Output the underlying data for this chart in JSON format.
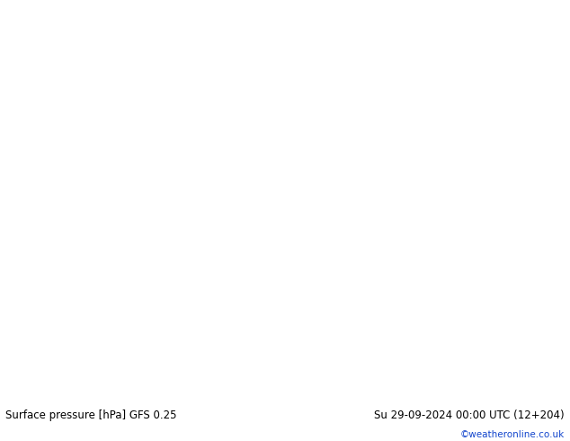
{
  "bottom_left_label": "Surface pressure [hPa] GFS 0.25",
  "bottom_right_label": "Su 29-09-2024 00:00 UTC (12+204)",
  "copyright_label": "©weatheronline.co.uk",
  "fig_width": 6.34,
  "fig_height": 4.9,
  "dpi": 100,
  "lon_min": -25,
  "lon_max": 65,
  "lat_min": -38,
  "lat_max": 40,
  "land_color": "#c8e6a0",
  "ocean_color": "#ddeeff",
  "border_color": "#888888",
  "coastline_color": "#555555",
  "isobar_red": "#dd0000",
  "isobar_blue": "#1144cc",
  "isobar_black": "#000000",
  "label_fs": 8.5,
  "copy_fs": 7.5
}
